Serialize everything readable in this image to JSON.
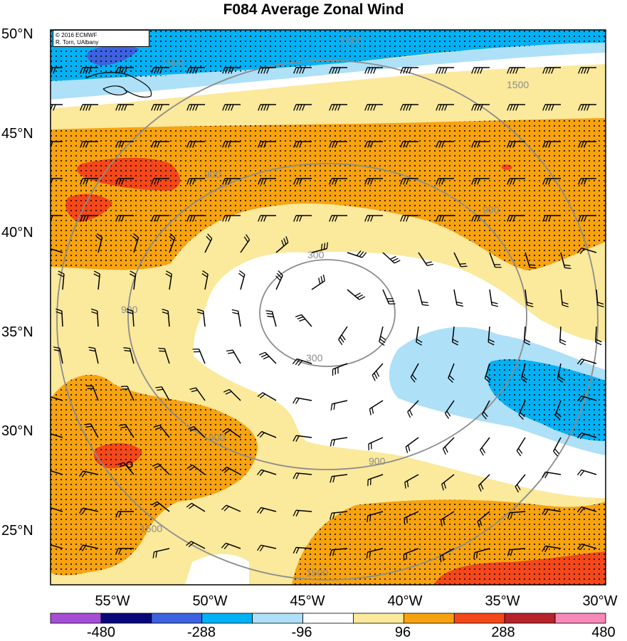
{
  "title": "F084 Average Zonal Wind",
  "credit": {
    "line1": "© 2016 ECMWF",
    "line2": "R. Torn, UAlbany"
  },
  "latitude_labels": [
    "50°N",
    "45°N",
    "40°N",
    "35°N",
    "30°N",
    "25°N"
  ],
  "longitude_labels": [
    "55°W",
    "50°W",
    "45°W",
    "40°W",
    "35°W",
    "30°W"
  ],
  "colorbar": {
    "colors": [
      "#a64dd6",
      "#08087a",
      "#3c62e0",
      "#00b2f5",
      "#aee0f8",
      "#ffffff",
      "#fbe99c",
      "#f7a310",
      "#f5481a",
      "#b7232a",
      "#f789b9"
    ],
    "labels": [
      "-480",
      "-288",
      "-96",
      "96",
      "288",
      "480"
    ]
  },
  "contour_labels": [
    "1500",
    "1500",
    "1500",
    "1500",
    "1500",
    "900",
    "900",
    "900",
    "900",
    "900",
    "300",
    "300"
  ],
  "colors": {
    "white": "#ffffff",
    "pale_yellow": "#fbe99c",
    "orange": "#f7a310",
    "red": "#f5481a",
    "light_blue": "#aee0f8",
    "blue": "#00b2f5",
    "dark_blue": "#3c62e0",
    "contour": "#8c8c8c"
  }
}
